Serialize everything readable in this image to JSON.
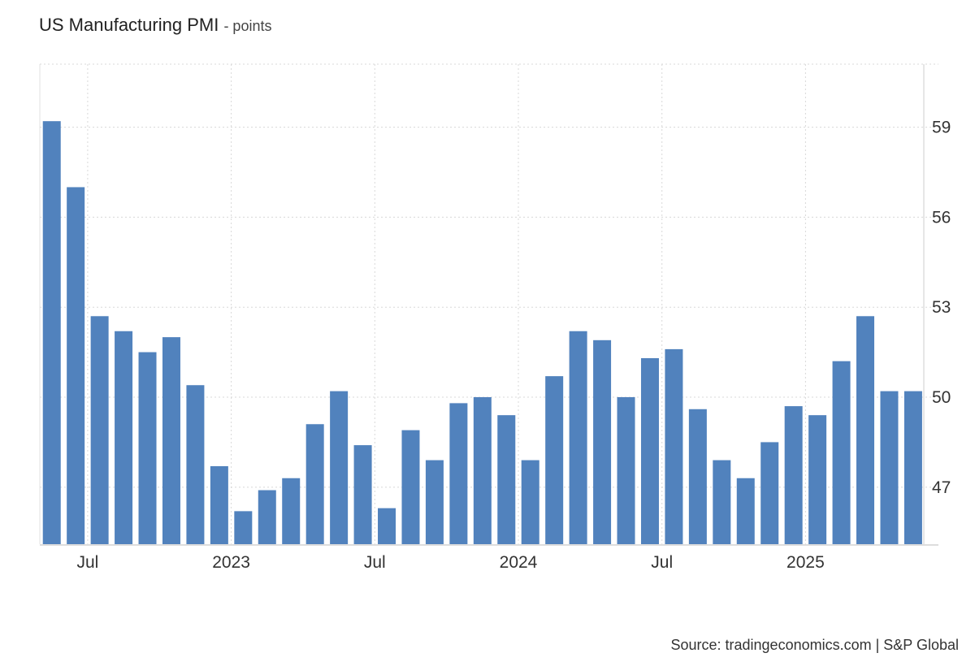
{
  "title": "US Manufacturing PMI",
  "unit_suffix": "- points",
  "source": "Source: tradingeconomics.com | S&P Global",
  "chart_data": {
    "type": "bar",
    "title": "US Manufacturing PMI",
    "subtitle": "- points",
    "bar_color": "#5182bd",
    "grid": true,
    "ylim": [
      45.1,
      61.1
    ],
    "yticks": [
      47,
      50,
      53,
      56,
      59
    ],
    "x_tick_labels": [
      {
        "label": "Jul",
        "after_index": 1
      },
      {
        "label": "2023",
        "after_index": 7
      },
      {
        "label": "Jul",
        "after_index": 13
      },
      {
        "label": "2024",
        "after_index": 19
      },
      {
        "label": "Jul",
        "after_index": 25
      },
      {
        "label": "2025",
        "after_index": 31
      }
    ],
    "categories": [
      "2022-05",
      "2022-06",
      "2022-07",
      "2022-08",
      "2022-09",
      "2022-10",
      "2022-11",
      "2022-12",
      "2023-01",
      "2023-02",
      "2023-03",
      "2023-04",
      "2023-05",
      "2023-06",
      "2023-07",
      "2023-08",
      "2023-09",
      "2023-10",
      "2023-11",
      "2023-12",
      "2024-01",
      "2024-02",
      "2024-03",
      "2024-04",
      "2024-05",
      "2024-06",
      "2024-07",
      "2024-08",
      "2024-09",
      "2024-10",
      "2024-11",
      "2024-12",
      "2025-01",
      "2025-02",
      "2025-03",
      "2025-04",
      "2025-05"
    ],
    "values": [
      59.2,
      57.0,
      52.7,
      52.2,
      51.5,
      52.0,
      50.4,
      47.7,
      46.2,
      46.9,
      47.3,
      49.1,
      50.2,
      48.4,
      46.3,
      48.9,
      47.9,
      49.8,
      50.0,
      49.4,
      47.9,
      50.7,
      52.2,
      51.9,
      50.0,
      51.3,
      51.6,
      49.6,
      47.9,
      47.3,
      48.5,
      49.7,
      49.4,
      51.2,
      52.7,
      50.2,
      50.2
    ]
  }
}
